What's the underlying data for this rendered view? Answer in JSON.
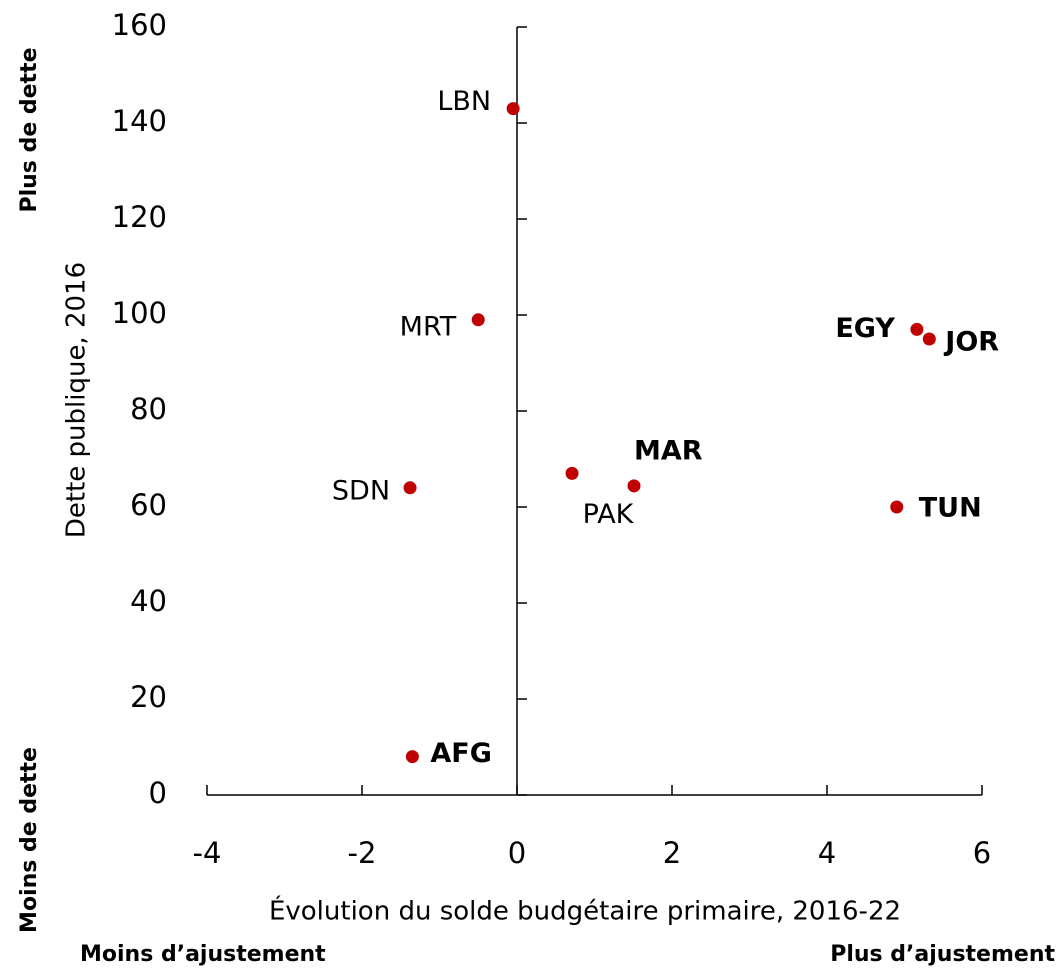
{
  "chart_data": {
    "type": "scatter",
    "x_label": "Évolution du solde budgétaire primaire, 2016-22",
    "y_label": "Dette publique, 2016",
    "annotations": [
      "Plus de dette",
      "Moins de dette",
      "Moins d’ajustement",
      "Plus d’ajustement"
    ],
    "point_labels": [
      "LBN",
      "MRT",
      "EGY",
      "JOR",
      "SDN",
      "PAK",
      "MAR",
      "TUN",
      "AFG"
    ],
    "bold_labels": [
      false,
      false,
      true,
      true,
      false,
      false,
      true,
      true,
      true
    ],
    "x": [
      -0.05,
      -0.5,
      5.16,
      5.32,
      -1.38,
      0.71,
      1.51,
      4.9,
      -1.35
    ],
    "values": [
      143,
      99,
      97,
      95,
      64,
      67,
      64.4,
      60,
      8
    ],
    "color": "#c00000",
    "xlim": [
      -4,
      6
    ],
    "xticks": [
      -4,
      -2,
      0,
      2,
      4,
      6
    ],
    "ylim": [
      0,
      160
    ],
    "yticks": [
      0,
      20,
      40,
      60,
      80,
      100,
      120,
      140,
      160
    ]
  }
}
